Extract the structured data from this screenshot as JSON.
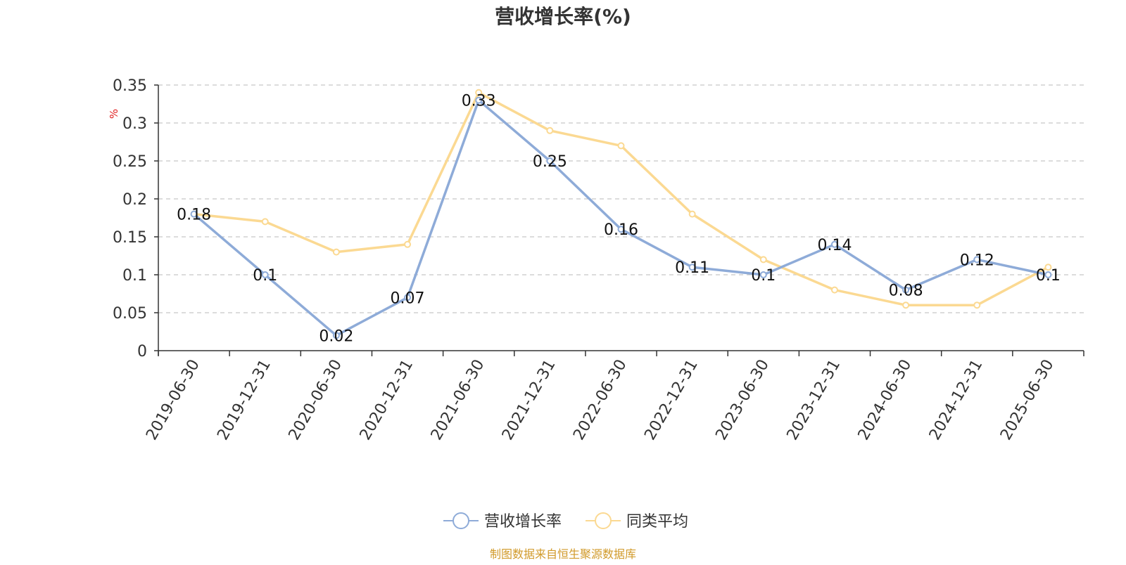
{
  "chart_data": {
    "type": "line",
    "title": "营收增长率(%)",
    "ylabel": "%",
    "xlabel": "",
    "categories": [
      "2019-06-30",
      "2019-12-31",
      "2020-06-30",
      "2020-12-31",
      "2021-06-30",
      "2021-12-31",
      "2022-06-30",
      "2022-12-31",
      "2023-06-30",
      "2023-12-31",
      "2024-06-30",
      "2024-12-31",
      "2025-06-30"
    ],
    "ylim": [
      0,
      0.35
    ],
    "yticks": [
      "0",
      "0.05",
      "0.1",
      "0.15",
      "0.2",
      "0.25",
      "0.3",
      "0.35"
    ],
    "grid": true,
    "legend_position": "bottom",
    "series": [
      {
        "name": "营收增长率",
        "color": "#8eabd8",
        "values": [
          0.18,
          0.1,
          0.02,
          0.07,
          0.33,
          0.25,
          0.16,
          0.11,
          0.1,
          0.14,
          0.08,
          0.12,
          0.1
        ],
        "labels": [
          "0.18",
          "0.1",
          "0.02",
          "0.07",
          "0.33",
          "0.25",
          "0.16",
          "0.11",
          "0.1",
          "0.14",
          "0.08",
          "0.12",
          "0.1"
        ]
      },
      {
        "name": "同类平均",
        "color": "#fbd992",
        "values": [
          0.18,
          0.17,
          0.13,
          0.14,
          0.34,
          0.29,
          0.27,
          0.18,
          0.12,
          0.08,
          0.06,
          0.06,
          0.11
        ]
      }
    ]
  },
  "footer": {
    "source": "制图数据来自恒生聚源数据库"
  }
}
